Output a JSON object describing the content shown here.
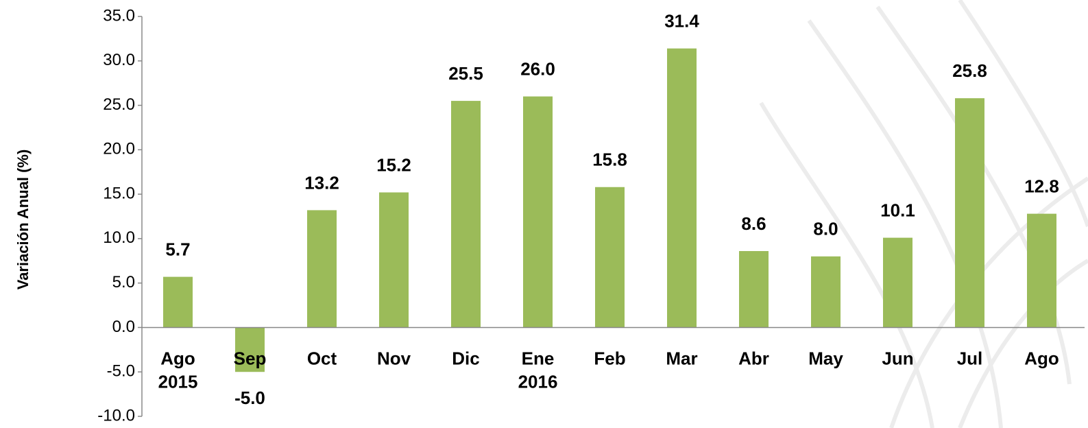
{
  "chart_data": {
    "type": "bar",
    "y_label": "Variación Anual  (%)",
    "categories": [
      "Ago 2015",
      "Sep",
      "Oct",
      "Nov",
      "Dic",
      "Ene 2016",
      "Feb",
      "Mar",
      "Abr",
      "May",
      "Jun",
      "Jul",
      "Ago"
    ],
    "values": [
      5.7,
      -5.0,
      13.2,
      15.2,
      25.5,
      26.0,
      15.8,
      31.4,
      8.6,
      8.0,
      10.1,
      25.8,
      12.8
    ],
    "value_labels": [
      "5.7",
      "-5.0",
      "13.2",
      "15.2",
      "25.5",
      "26.0",
      "15.8",
      "31.4",
      "8.6",
      "8.0",
      "10.1",
      "25.8",
      "12.8"
    ],
    "color": "#9bbb59",
    "ylim": [
      -10,
      35
    ],
    "yticks": [
      {
        "value": -10,
        "label": "-10.0"
      },
      {
        "value": -5,
        "label": "-5.0"
      },
      {
        "value": 0,
        "label": "0.0"
      },
      {
        "value": 5,
        "label": "5.0"
      },
      {
        "value": 10,
        "label": "10.0"
      },
      {
        "value": 15,
        "label": "15.0"
      },
      {
        "value": 20,
        "label": "20.0"
      },
      {
        "value": 25,
        "label": "25.0"
      },
      {
        "value": 30,
        "label": "30.0"
      },
      {
        "value": 35,
        "label": "35.0"
      }
    ],
    "grid": false
  }
}
